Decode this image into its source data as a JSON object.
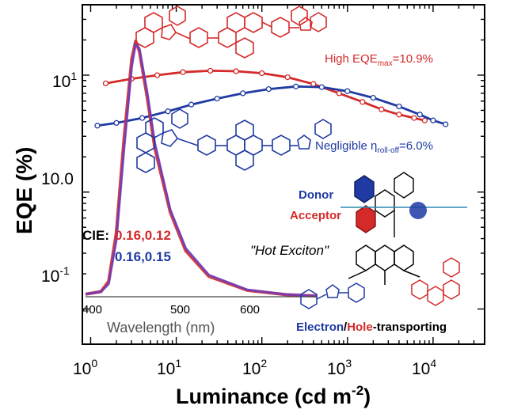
{
  "chart_data": [
    {
      "type": "line",
      "xlabel": "Luminance (cd m⁻²)",
      "xlabel_main": "Luminance (cd m",
      "xlabel_sup": "-2",
      "xlabel_close": ")",
      "ylabel": "EQE (%)",
      "xscale": "log",
      "yscale": "log",
      "xlim": [
        0.8,
        40000
      ],
      "ylim": [
        0.05,
        40
      ],
      "x_ticks": [
        {
          "value": 1,
          "base": "10",
          "exp": "0"
        },
        {
          "value": 10,
          "base": "10",
          "exp": "1"
        },
        {
          "value": 100,
          "base": "10",
          "exp": "2"
        },
        {
          "value": 1000,
          "base": "10",
          "exp": "3"
        },
        {
          "value": 10000,
          "base": "10",
          "exp": "4"
        }
      ],
      "y_ticks": [
        {
          "value": 0.1,
          "base": "10",
          "exp": "-1"
        },
        {
          "value": 1,
          "label": "10",
          "suffix": "0"
        },
        {
          "value": 10,
          "base": "10",
          "exp": "1"
        }
      ],
      "series": [
        {
          "color": "#d42a2a",
          "x": [
            1.5,
            3,
            6,
            12,
            25,
            50,
            100,
            200,
            400,
            800,
            1500,
            2500,
            4000,
            6000,
            8000
          ],
          "y": [
            8.5,
            9.3,
            10.0,
            10.6,
            10.9,
            10.8,
            10.4,
            9.6,
            8.4,
            7.0,
            5.9,
            5.1,
            4.6,
            4.3,
            4.1
          ]
        },
        {
          "color": "#1f3aa3",
          "x": [
            1.2,
            2,
            4,
            8,
            15,
            30,
            60,
            120,
            250,
            500,
            1000,
            2000,
            4000,
            7000,
            10000,
            14000
          ],
          "y": [
            3.7,
            3.9,
            4.3,
            4.9,
            5.6,
            6.3,
            7.0,
            7.6,
            8.0,
            7.9,
            7.3,
            6.4,
            5.4,
            4.6,
            4.1,
            3.8
          ]
        }
      ]
    },
    {
      "type": "line",
      "xlabel": "Wavelength (nm)",
      "xlim": [
        390,
        690
      ],
      "x_ticks": [
        400,
        500,
        600
      ],
      "series": [
        {
          "color": "#d42a2a",
          "x": [
            390,
            410,
            420,
            430,
            440,
            450,
            455,
            460,
            470,
            480,
            500,
            520,
            550,
            600,
            650,
            690
          ],
          "y": [
            0.01,
            0.02,
            0.06,
            0.25,
            0.62,
            0.93,
            1.0,
            0.96,
            0.78,
            0.58,
            0.33,
            0.18,
            0.08,
            0.025,
            0.008,
            0.003
          ]
        },
        {
          "color": "#6a3cc0",
          "x": [
            390,
            410,
            420,
            430,
            440,
            450,
            455,
            460,
            470,
            480,
            500,
            520,
            550,
            600,
            650,
            690
          ],
          "y": [
            0.01,
            0.02,
            0.05,
            0.22,
            0.58,
            0.9,
            0.99,
            0.97,
            0.8,
            0.6,
            0.34,
            0.19,
            0.085,
            0.027,
            0.009,
            0.003
          ]
        }
      ]
    }
  ],
  "annotations": {
    "high_eqe_prefix": "High EQE",
    "high_eqe_sub": "max",
    "high_eqe_value": "=10.9%",
    "rolloff_prefix": "Negligible η",
    "rolloff_sub": "roll-off",
    "rolloff_value": "=6.0%",
    "cie_label": "CIE:",
    "cie_red": "0.16,0.12",
    "cie_blue": "0.16,0.15",
    "donor": "Donor",
    "acceptor": "Acceptor",
    "hot_exciton": "\"Hot Exciton\"",
    "electron": "Electron",
    "slash": "/",
    "hole": "Hole",
    "transporting": "-transporting"
  },
  "colors": {
    "red": "#d42a2a",
    "blue": "#1f3aa3",
    "purple": "#7a4fd0",
    "axis": "#000000"
  }
}
